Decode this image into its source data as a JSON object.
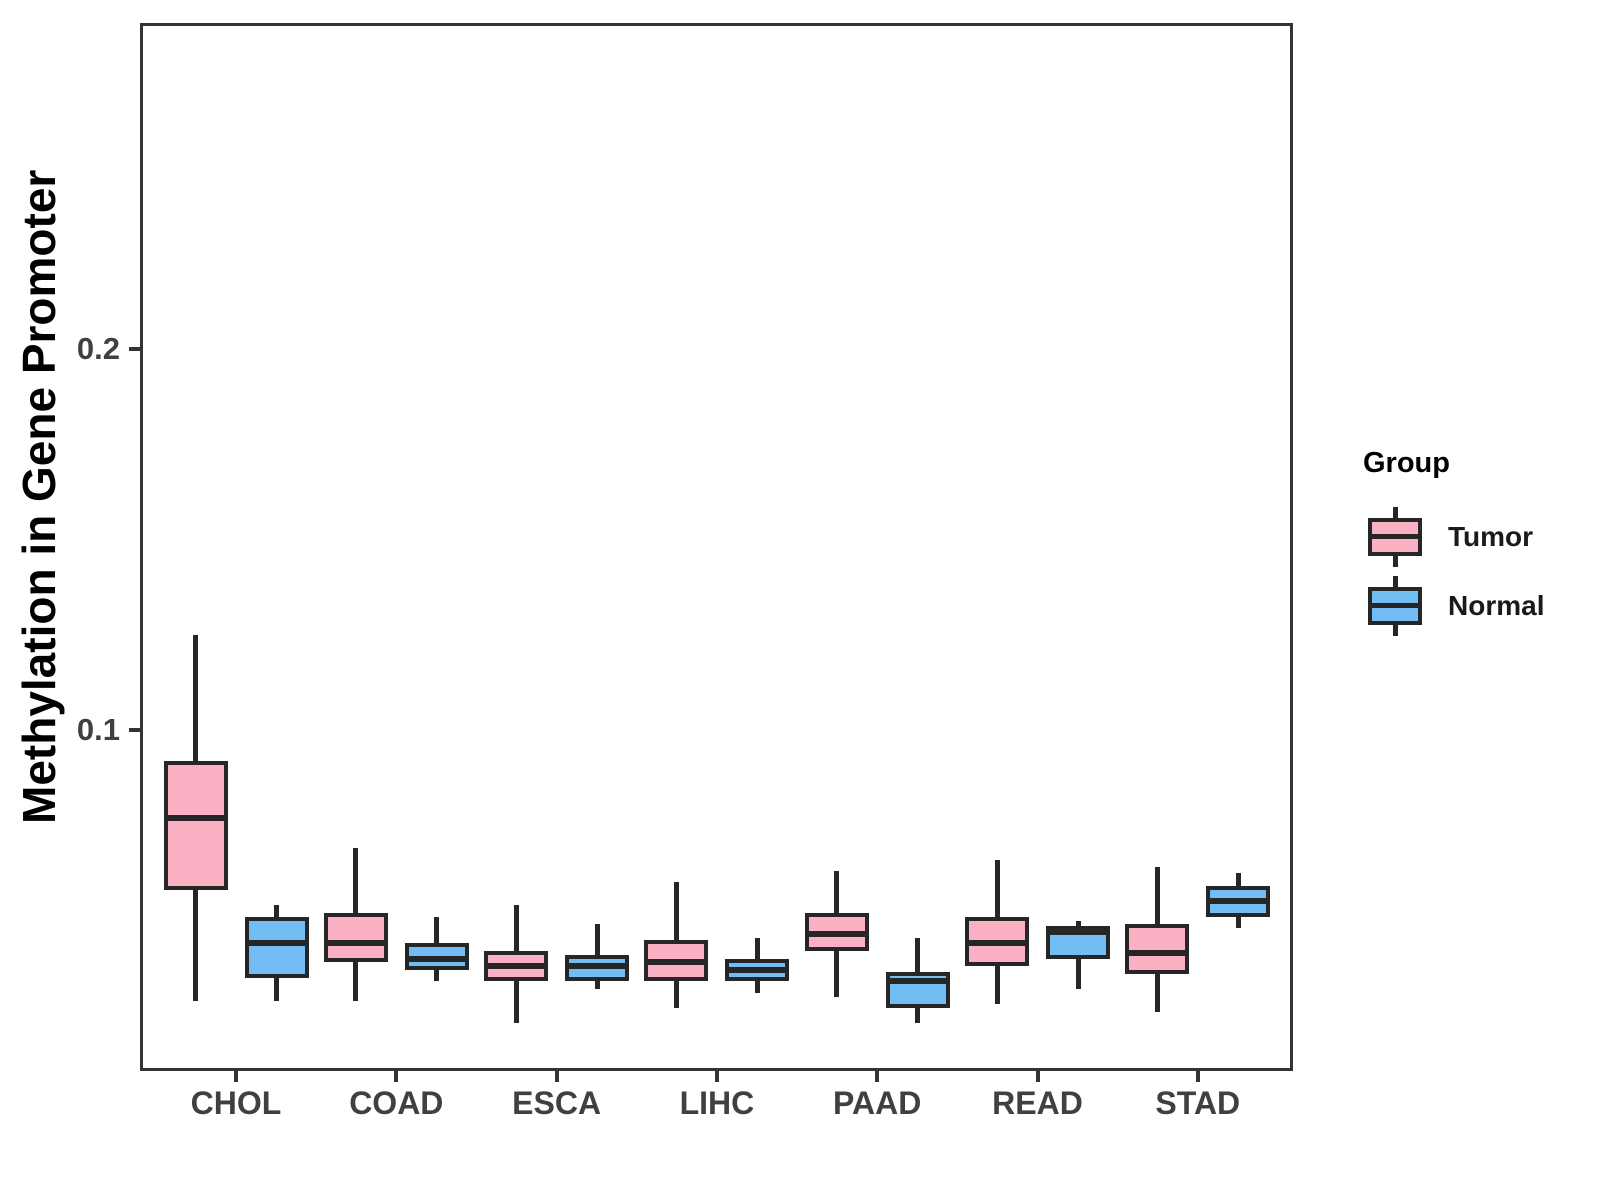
{
  "chart_data": {
    "type": "boxplot",
    "title": "",
    "ylabel": "Methylation in Gene Promoter",
    "xlabel": "",
    "categories": [
      "CHOL",
      "COAD",
      "ESCA",
      "LIHC",
      "PAAD",
      "READ",
      "STAD"
    ],
    "ylim": [
      0.0105,
      0.2856
    ],
    "yticks": [
      {
        "value": 0.1,
        "label": "0.1"
      },
      {
        "value": 0.2,
        "label": "0.2"
      }
    ],
    "grid": false,
    "legend": {
      "title": "Group",
      "position": "right"
    },
    "series": [
      {
        "name": "Tumor",
        "fill": "#FBB1C4",
        "boxes": [
          {
            "category": "CHOL",
            "whisker_low": 0.029,
            "q1": 0.058,
            "median": 0.077,
            "q3": 0.092,
            "whisker_high": 0.125
          },
          {
            "category": "COAD",
            "whisker_low": 0.029,
            "q1": 0.039,
            "median": 0.044,
            "q3": 0.052,
            "whisker_high": 0.069
          },
          {
            "category": "ESCA",
            "whisker_low": 0.023,
            "q1": 0.034,
            "median": 0.038,
            "q3": 0.042,
            "whisker_high": 0.054
          },
          {
            "category": "LIHC",
            "whisker_low": 0.027,
            "q1": 0.034,
            "median": 0.039,
            "q3": 0.045,
            "whisker_high": 0.06
          },
          {
            "category": "PAAD",
            "whisker_low": 0.03,
            "q1": 0.042,
            "median": 0.0465,
            "q3": 0.052,
            "whisker_high": 0.063
          },
          {
            "category": "READ",
            "whisker_low": 0.028,
            "q1": 0.038,
            "median": 0.044,
            "q3": 0.051,
            "whisker_high": 0.066
          },
          {
            "category": "STAD",
            "whisker_low": 0.026,
            "q1": 0.036,
            "median": 0.0415,
            "q3": 0.049,
            "whisker_high": 0.064
          }
        ]
      },
      {
        "name": "Normal",
        "fill": "#72BEF4",
        "boxes": [
          {
            "category": "CHOL",
            "whisker_low": 0.029,
            "q1": 0.035,
            "median": 0.044,
            "q3": 0.051,
            "whisker_high": 0.054
          },
          {
            "category": "COAD",
            "whisker_low": 0.034,
            "q1": 0.037,
            "median": 0.04,
            "q3": 0.044,
            "whisker_high": 0.051
          },
          {
            "category": "ESCA",
            "whisker_low": 0.032,
            "q1": 0.034,
            "median": 0.038,
            "q3": 0.041,
            "whisker_high": 0.049
          },
          {
            "category": "LIHC",
            "whisker_low": 0.031,
            "q1": 0.034,
            "median": 0.037,
            "q3": 0.04,
            "whisker_high": 0.0455
          },
          {
            "category": "PAAD",
            "whisker_low": 0.023,
            "q1": 0.027,
            "median": 0.034,
            "q3": 0.0365,
            "whisker_high": 0.0455
          },
          {
            "category": "READ",
            "whisker_low": 0.032,
            "q1": 0.04,
            "median": 0.047,
            "q3": 0.0485,
            "whisker_high": 0.05
          },
          {
            "category": "STAD",
            "whisker_low": 0.048,
            "q1": 0.051,
            "median": 0.055,
            "q3": 0.059,
            "whisker_high": 0.0625
          }
        ]
      }
    ],
    "significance": [
      {
        "category": "CHOL",
        "label": "***"
      },
      {
        "category": "PAAD",
        "label": "*"
      }
    ],
    "colors": {
      "box_stroke": "#262626",
      "axis_line": "#333333",
      "tick_text": "#404040",
      "title_text": "#000000"
    }
  }
}
